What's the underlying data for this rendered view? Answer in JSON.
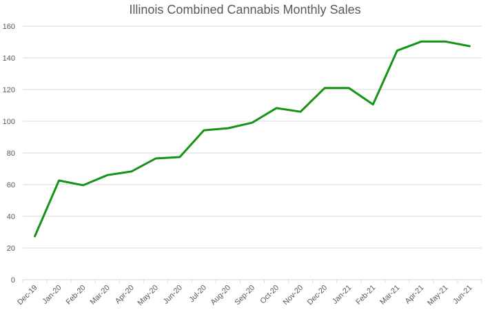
{
  "chart_data": {
    "type": "line",
    "title": "Illinois Combined Cannabis Monthly Sales",
    "xlabel": "",
    "ylabel": "",
    "categories": [
      "Dec-19",
      "Jan-20",
      "Feb-20",
      "Mar-20",
      "Apr-20",
      "May-20",
      "Jun-20",
      "Jul-20",
      "Aug-20",
      "Sep-20",
      "Oct-20",
      "Nov-20",
      "Dec-20",
      "Jan-21",
      "Feb-21",
      "Mar-21",
      "Apr-21",
      "May-21",
      "Jun-21"
    ],
    "series": [
      {
        "name": "Combined Sales",
        "color": "#149414",
        "values": [
          27.4,
          62.6,
          59.6,
          66.0,
          68.3,
          76.5,
          77.4,
          94.3,
          95.6,
          99.1,
          108.3,
          106.0,
          121.0,
          121.0,
          110.6,
          144.6,
          150.3,
          150.3,
          147.4
        ]
      }
    ],
    "ylim": [
      0,
      160
    ],
    "yticks": [
      0,
      20,
      40,
      60,
      80,
      100,
      120,
      140,
      160
    ],
    "grid": true,
    "legend": "none"
  }
}
